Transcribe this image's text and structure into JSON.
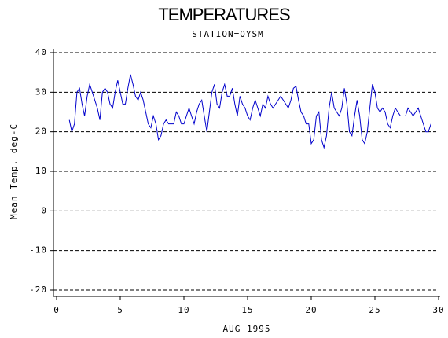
{
  "chart_data": {
    "type": "line",
    "title": "TEMPERATURES",
    "subtitle": "STATION=OYSM",
    "x_label": "AUG 1995",
    "y_label": "Mean Temp. deg-C",
    "x": [
      1.0,
      1.2,
      1.4,
      1.6,
      1.8,
      2.0,
      2.2,
      2.4,
      2.6,
      2.8,
      3.0,
      3.2,
      3.4,
      3.6,
      3.8,
      4.0,
      4.2,
      4.4,
      4.6,
      4.8,
      5.0,
      5.2,
      5.4,
      5.6,
      5.8,
      6.0,
      6.2,
      6.4,
      6.6,
      6.8,
      7.0,
      7.2,
      7.4,
      7.6,
      7.8,
      8.0,
      8.2,
      8.4,
      8.6,
      8.8,
      9.0,
      9.2,
      9.4,
      9.6,
      9.8,
      10.0,
      10.2,
      10.4,
      10.6,
      10.8,
      11.0,
      11.2,
      11.4,
      11.6,
      11.8,
      12.0,
      12.2,
      12.4,
      12.6,
      12.8,
      13.0,
      13.2,
      13.4,
      13.6,
      13.8,
      14.0,
      14.2,
      14.4,
      14.6,
      14.8,
      15.0,
      15.2,
      15.4,
      15.6,
      15.8,
      16.0,
      16.2,
      16.4,
      16.6,
      16.8,
      17.0,
      17.2,
      17.4,
      17.6,
      17.8,
      18.0,
      18.2,
      18.4,
      18.6,
      18.8,
      19.0,
      19.2,
      19.4,
      19.6,
      19.8,
      20.0,
      20.2,
      20.4,
      20.6,
      20.8,
      21.0,
      21.2,
      21.4,
      21.6,
      21.8,
      22.0,
      22.2,
      22.4,
      22.6,
      22.8,
      23.0,
      23.2,
      23.4,
      23.6,
      23.8,
      24.0,
      24.2,
      24.4,
      24.6,
      24.8,
      25.0,
      25.2,
      25.4,
      25.6,
      25.8,
      26.0,
      26.2,
      26.4,
      26.6,
      26.8,
      27.0,
      27.2,
      27.4,
      27.6,
      27.8,
      28.0,
      28.2,
      28.4,
      28.6,
      28.8,
      29.0,
      29.2,
      29.4
    ],
    "series": [
      {
        "name": "Mean Temp.",
        "color": "#0000cc",
        "values": [
          23,
          20,
          22,
          30,
          31,
          27,
          24,
          29,
          32,
          30,
          28,
          26,
          23,
          30,
          31,
          30,
          27,
          26,
          30,
          33,
          30,
          27,
          27,
          31,
          34.5,
          32,
          29,
          28,
          30,
          28,
          25,
          22,
          21,
          24,
          22,
          18,
          19,
          22,
          23,
          22,
          22,
          22,
          25,
          24,
          22,
          22,
          24,
          26,
          24,
          22,
          25,
          27,
          28,
          24,
          20,
          25,
          30,
          32,
          27,
          26,
          30,
          32,
          29,
          29,
          31,
          27,
          24,
          29,
          27,
          26,
          24,
          23,
          26,
          28,
          26,
          24,
          27,
          26,
          29,
          27,
          26,
          27,
          28,
          29,
          28,
          27,
          26,
          28,
          31,
          31.5,
          28,
          25,
          24,
          22,
          22,
          17,
          18,
          24,
          25,
          18,
          16,
          19,
          26,
          30,
          26,
          25,
          24,
          26,
          31,
          27,
          20,
          19,
          24,
          28,
          24,
          18,
          17,
          20,
          26,
          32,
          30,
          26,
          25,
          26,
          25,
          22,
          21,
          24,
          26,
          25,
          24,
          24,
          24,
          26,
          25,
          24,
          25,
          26,
          24,
          22,
          20,
          20,
          22
        ]
      }
    ],
    "xlim": [
      0,
      30
    ],
    "xticks": [
      0,
      5,
      10,
      15,
      20,
      25,
      30
    ],
    "ylim": [
      -20,
      40
    ],
    "yticks": [
      -20,
      -10,
      0,
      10,
      20,
      30,
      40
    ],
    "grid": true
  }
}
